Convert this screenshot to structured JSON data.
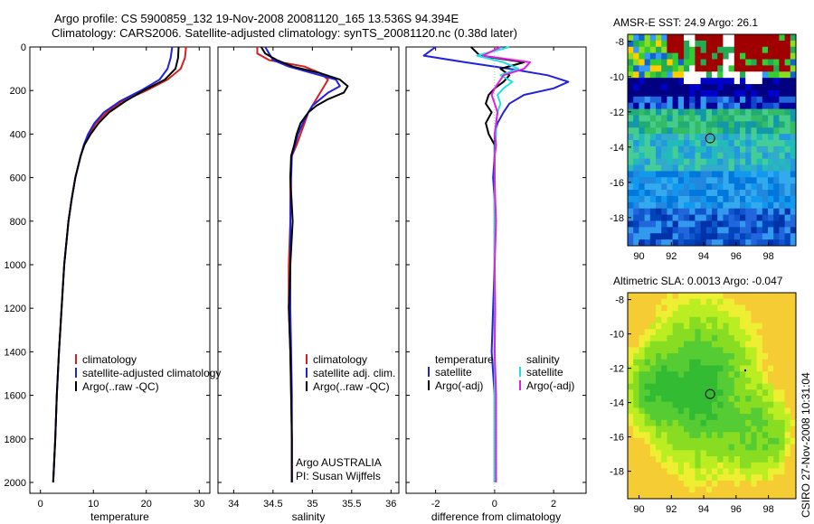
{
  "title": {
    "line1": "Argo profile: CS 5900859_132 19-Nov-2008 20081120_165 13.536S 94.394E",
    "line2": "Climatology: CARS2006. Satellite-adjusted climatology: synTS_20081120.nc (0.38d later)"
  },
  "colors": {
    "red": "#d42020",
    "blue": "#2222dd",
    "black": "#000000",
    "cyan": "#22e0e0",
    "magenta": "#e020e0"
  },
  "chart_data": [
    {
      "type": "line",
      "name": "temperature",
      "xlabel": "temperature",
      "xlim": [
        -2,
        32
      ],
      "ylim": [
        0,
        2050
      ],
      "yticks": [
        "0",
        "200",
        "400",
        "600",
        "800",
        "1000",
        "1200",
        "1400",
        "1600",
        "1800",
        "2000"
      ],
      "xticks": [
        "0",
        "10",
        "20",
        "30"
      ],
      "depth": [
        0,
        50,
        100,
        150,
        200,
        250,
        300,
        350,
        400,
        450,
        500,
        600,
        700,
        800,
        1000,
        1200,
        1400,
        1600,
        1800,
        2000
      ],
      "series": [
        {
          "name": "climatology",
          "color": "red",
          "values": [
            27.5,
            27.3,
            26.5,
            24.0,
            20.0,
            15.5,
            12.5,
            10.5,
            9.2,
            8.3,
            7.6,
            6.6,
            5.9,
            5.3,
            4.5,
            4.0,
            3.5,
            3.1,
            2.8,
            2.4
          ]
        },
        {
          "name": "satellite-adjusted climatology",
          "color": "blue",
          "values": [
            24.9,
            24.6,
            24.0,
            22.5,
            19.0,
            15.0,
            12.0,
            10.2,
            9.0,
            8.2,
            7.6,
            6.6,
            5.9,
            5.3,
            4.5,
            4.0,
            3.5,
            3.1,
            2.8,
            2.4
          ]
        },
        {
          "name": "Argo(..raw -QC)",
          "color": "black",
          "values": [
            26.1,
            26.0,
            25.5,
            23.5,
            19.5,
            16.0,
            13.0,
            11.0,
            9.5,
            8.3,
            7.6,
            6.6,
            5.9,
            5.3,
            4.5,
            4.0,
            3.5,
            3.1,
            2.8,
            2.4
          ]
        }
      ],
      "legend": [
        "climatology",
        "satellite-adjusted climatology",
        "Argo(..raw -QC)"
      ]
    },
    {
      "type": "line",
      "name": "salinity",
      "xlabel": "salinity",
      "xlim": [
        33.8,
        36.1
      ],
      "ylim": [
        0,
        2050
      ],
      "xticks": [
        "34",
        "34.5",
        "35",
        "35.5",
        "36"
      ],
      "depth": [
        0,
        30,
        60,
        90,
        120,
        150,
        180,
        210,
        240,
        270,
        300,
        350,
        400,
        450,
        500,
        600,
        800,
        1000,
        1200,
        1400,
        1600,
        1800,
        2000
      ],
      "series": [
        {
          "name": "climatology",
          "color": "red",
          "values": [
            34.3,
            34.3,
            34.45,
            34.9,
            35.1,
            35.2,
            35.15,
            35.1,
            35.05,
            35.0,
            34.95,
            34.9,
            34.85,
            34.8,
            34.74,
            34.72,
            34.72,
            34.7,
            34.7,
            34.72,
            34.73,
            34.74,
            34.74
          ]
        },
        {
          "name": "satellite adj. clim.",
          "color": "blue",
          "values": [
            34.4,
            34.45,
            34.5,
            34.7,
            35.0,
            35.3,
            35.35,
            35.2,
            35.1,
            35.0,
            34.95,
            34.88,
            34.82,
            34.78,
            34.74,
            34.73,
            34.72,
            34.72,
            34.72,
            34.73,
            34.74,
            34.74,
            34.74
          ]
        },
        {
          "name": "Argo(..raw -QC)",
          "color": "black",
          "values": [
            34.35,
            34.4,
            34.55,
            34.75,
            35.1,
            35.35,
            35.45,
            35.4,
            35.2,
            35.05,
            34.95,
            34.85,
            34.8,
            34.77,
            34.73,
            34.72,
            34.75,
            34.72,
            34.7,
            34.72,
            34.73,
            34.74,
            34.74
          ]
        }
      ],
      "legend": [
        "climatology",
        "satellite adj. clim.",
        "Argo(..raw -QC)"
      ],
      "annotation": {
        "line1": "Argo AUSTRALIA",
        "line2": "PI: Susan Wijffels"
      }
    },
    {
      "type": "line",
      "name": "difference",
      "xlabel": "difference from climatology",
      "xlim": [
        -3,
        3.1
      ],
      "ylim": [
        0,
        2050
      ],
      "xticks": [
        "-2",
        "0",
        "2"
      ],
      "depth": [
        0,
        40,
        70,
        100,
        130,
        160,
        190,
        220,
        260,
        300,
        350,
        400,
        450,
        500,
        600,
        700,
        800,
        1000,
        1200,
        1400,
        1600,
        1800,
        2000
      ],
      "series": [
        {
          "name": "temperature satellite",
          "color": "blue",
          "values": [
            -2.0,
            -2.4,
            -1.0,
            0.5,
            1.8,
            2.5,
            2.0,
            1.0,
            0.5,
            0.3,
            0.1,
            0.0,
            0.0,
            0.0,
            -0.05,
            0.0,
            0.0,
            0.0,
            -0.05,
            -0.1,
            0.0,
            0.0,
            0.0
          ]
        },
        {
          "name": "temperature Argo(-adj)",
          "color": "black",
          "values": [
            -0.8,
            -0.5,
            1.0,
            0.2,
            0.5,
            0.3,
            0.0,
            -0.2,
            -0.3,
            -0.1,
            -0.3,
            -0.2,
            0.0,
            0.0,
            0.0,
            0.0,
            0.0,
            0.0,
            0.0,
            0.0,
            0.0,
            0.0,
            0.0
          ]
        },
        {
          "name": "salinity satellite",
          "color": "cyan",
          "values": [
            0.5,
            -0.6,
            0.3,
            0.8,
            0.2,
            0.6,
            0.3,
            0.1,
            0.2,
            0.1,
            0.05,
            0.05,
            0.02,
            0.0,
            0.0,
            0.0,
            0.0,
            0.0,
            0.0,
            0.0,
            0.0,
            0.0,
            0.0
          ]
        },
        {
          "name": "salinity Argo(-adj)",
          "color": "magenta",
          "values": [
            0.2,
            -0.4,
            1.2,
            1.0,
            0.3,
            0.15,
            0.0,
            -0.1,
            0.0,
            0.1,
            0.05,
            0.0,
            0.05,
            0.0,
            0.0,
            0.02,
            0.05,
            0.0,
            0.02,
            0.0,
            0.05,
            0.05,
            0.05
          ]
        }
      ],
      "legend_temperature_header": "temperature",
      "legend_salinity_header": "salinity",
      "legend_temp_items": [
        "satellite",
        "Argo(-adj)"
      ],
      "legend_sal_items": [
        "satellite",
        "Argo(-adj)"
      ]
    },
    {
      "type": "heatmap",
      "name": "sst_map",
      "title": "AMSR-E SST: 24.9 Argo: 26.1",
      "xlim": [
        89.3,
        99.7
      ],
      "ylim": [
        -19.6,
        -7.6
      ],
      "xticks": [
        "90",
        "92",
        "94",
        "96",
        "98"
      ],
      "yticks": [
        "-8",
        "-10",
        "-12",
        "-14",
        "-16",
        "-18"
      ],
      "marker": {
        "lon": 94.4,
        "lat": -13.5
      }
    },
    {
      "type": "heatmap",
      "name": "sla_map",
      "title": "Altimetric SLA: 0.0013 Argo: -0.047",
      "xlim": [
        89.3,
        99.7
      ],
      "ylim": [
        -19.6,
        -7.6
      ],
      "xticks": [
        "90",
        "92",
        "94",
        "96",
        "98"
      ],
      "yticks": [
        "-8",
        "-10",
        "-12",
        "-14",
        "-16",
        "-18"
      ],
      "marker": {
        "lon": 94.4,
        "lat": -13.5
      }
    }
  ],
  "side_label": "CSIRO 27-Nov-2008 10:31:04"
}
